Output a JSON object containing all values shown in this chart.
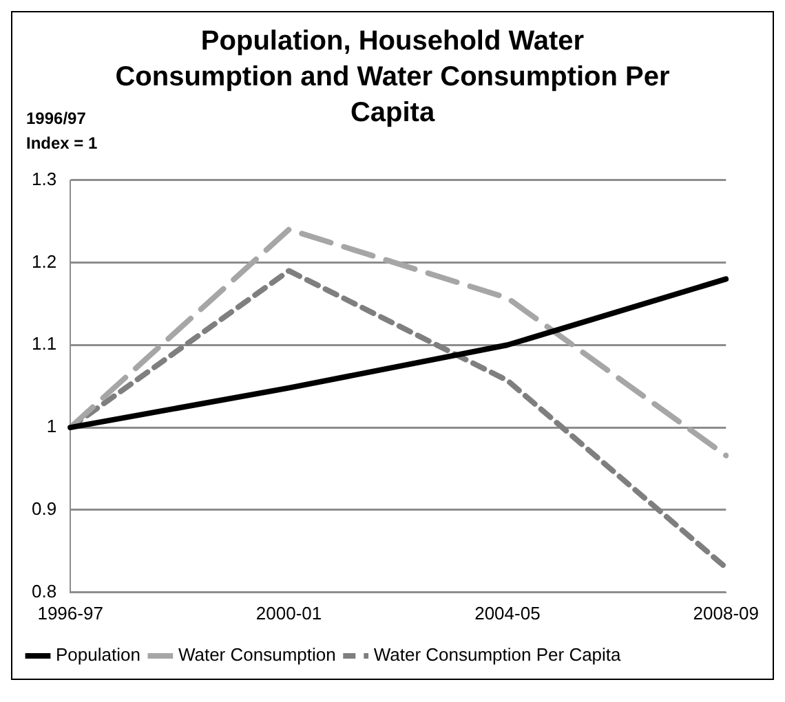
{
  "chart_data": {
    "type": "line",
    "title": "Population, Household Water Consumption and Water Consumption Per Capita",
    "ylabel": "1996/97 Index = 1",
    "categories": [
      "1996-97",
      "2000-01",
      "2004-05",
      "2008-09"
    ],
    "series": [
      {
        "name": "Population",
        "color": "#000000",
        "line_style": "solid",
        "values": [
          1,
          1.048,
          1.1,
          1.18
        ]
      },
      {
        "name": "Water Consumption",
        "color": "#a6a6a6",
        "line_style": "dashed",
        "values": [
          1,
          1.24,
          1.157,
          0.966
        ]
      },
      {
        "name": "Water Consumption Per Capita",
        "color": "#7f7f7f",
        "line_style": "dotted",
        "values": [
          1,
          1.19,
          1.057,
          0.83
        ]
      }
    ],
    "ylim": [
      0.8,
      1.3
    ],
    "yticks": [
      0.8,
      0.9,
      1,
      1.1,
      1.2,
      1.3
    ],
    "grid": "y",
    "legend": "bottom",
    "marker": "none"
  }
}
